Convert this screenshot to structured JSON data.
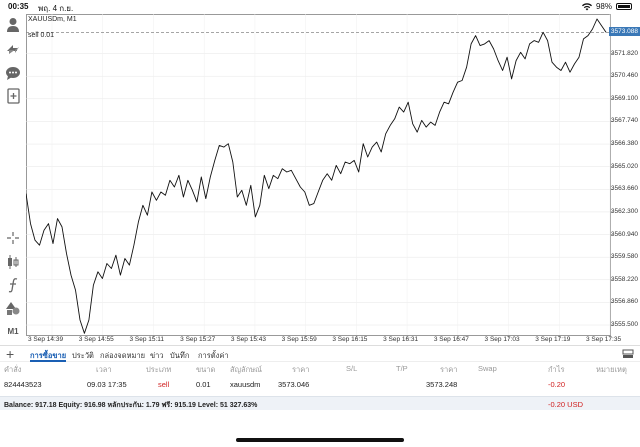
{
  "status": {
    "time": "00:35",
    "date": "พฤ. 4 ก.ย.",
    "battery": "98%",
    "battery_level": 98
  },
  "chart": {
    "symbol": "XAUUSDm, M1",
    "order_line": "sell 0.01",
    "current_price": "3573.088",
    "price_levels": [
      "3571.820",
      "3570.460",
      "3569.100",
      "3567.740",
      "3566.380",
      "3565.020",
      "3563.660",
      "3562.300",
      "3560.940",
      "3559.580",
      "3558.220",
      "3556.860",
      "3555.500"
    ],
    "time_labels": [
      "3 Sep 14:39",
      "3 Sep 14:55",
      "3 Sep 15:11",
      "3 Sep 15:27",
      "3 Sep 15:43",
      "3 Sep 15:59",
      "3 Sep 16:15",
      "3 Sep 16:31",
      "3 Sep 16:47",
      "3 Sep 17:03",
      "3 Sep 17:19",
      "3 Sep 17:35"
    ],
    "line_color": "#111111",
    "order_line_color": "#888888",
    "price_tag_color": "#3a78b7"
  },
  "chart_data": {
    "type": "line",
    "title": "XAUUSDm, M1",
    "xlabel": "",
    "ylabel": "",
    "ylim": [
      3554.9,
      3574.2
    ],
    "grid": true,
    "order_price": 3573.088,
    "series": [
      {
        "values": [
          3563.4,
          3561.6,
          3560.6,
          3560.3,
          3561.2,
          3561.6,
          3560.4,
          3561.9,
          3561.4,
          3559.8,
          3558.5,
          3557.6,
          3555.8,
          3555.0,
          3555.8,
          3557.9,
          3558.7,
          3558.3,
          3559.2,
          3558.9,
          3559.7,
          3558.5,
          3559.5,
          3559.1,
          3560.3,
          3561.7,
          3562.7,
          3562.1,
          3563.5,
          3563.0,
          3563.5,
          3563.3,
          3564.2,
          3563.8,
          3564.5,
          3563.2,
          3564.2,
          3563.6,
          3562.9,
          3564.4,
          3563.1,
          3564.4,
          3565.4,
          3566.3,
          3566.2,
          3566.4,
          3565.3,
          3563.2,
          3563.6,
          3562.7,
          3563.9,
          3562.0,
          3562.7,
          3564.5,
          3563.7,
          3564.5,
          3564.3,
          3564.9,
          3564.7,
          3564.8,
          3564.3,
          3563.8,
          3563.5,
          3562.7,
          3562.8,
          3563.5,
          3564.2,
          3564.6,
          3564.2,
          3565.1,
          3564.6,
          3565.3,
          3565.2,
          3565.4,
          3564.7,
          3566.4,
          3565.6,
          3566.2,
          3566.5,
          3565.9,
          3567.0,
          3567.5,
          3567.9,
          3568.6,
          3568.3,
          3568.9,
          3567.6,
          3567.1,
          3567.8,
          3567.4,
          3567.7,
          3567.5,
          3568.3,
          3568.9,
          3568.8,
          3569.5,
          3570.1,
          3570.2,
          3571.0,
          3572.4,
          3572.9,
          3572.3,
          3572.4,
          3572.6,
          3572.1,
          3571.4,
          3570.8,
          3571.6,
          3570.3,
          3571.4,
          3571.9,
          3571.5,
          3572.4,
          3572.6,
          3572.5,
          3573.1,
          3572.6,
          3571.3,
          3571.0,
          3570.8,
          3571.3,
          3570.7,
          3571.2,
          3571.6,
          3572.7,
          3572.9,
          3573.3,
          3573.9,
          3573.5,
          3573.1
        ]
      }
    ]
  },
  "toolbar": {
    "timeframe": "M1",
    "icons": [
      "person-icon",
      "transfer-icon",
      "chat-icon",
      "add-document-icon",
      "crosshair-icon",
      "candles-icon",
      "function-icon",
      "shapes-icon"
    ]
  },
  "tabs": [
    "การซื้อขาย",
    "ประวัติ",
    "กล่องจดหมาย",
    "ข่าว",
    "บันทึก",
    "การตั้งค่า"
  ],
  "table": {
    "headers": [
      "คำสั่ง",
      "เวลา",
      "ประเภท",
      "ขนาด",
      "สัญลักษณ์",
      "ราคา",
      "S/L",
      "T/P",
      "ราคา",
      "Swap",
      "กำไร",
      "หมายเหตุ"
    ],
    "row": {
      "order": "824443523",
      "time": "09.03 17:35",
      "type": "sell",
      "size": "0.01",
      "symbol": "xauusdm",
      "price_open": "3573.046",
      "sl": "",
      "tp": "",
      "price_current": "3573.248",
      "swap": "",
      "profit": "-0.20",
      "note": ""
    }
  },
  "balance": {
    "text": "Balance: 917.18 Equity: 916.98 หลักประกัน: 1.79 ฟรี: 915.19 Level: 51 327.63%",
    "pl": "-0.20  USD"
  }
}
